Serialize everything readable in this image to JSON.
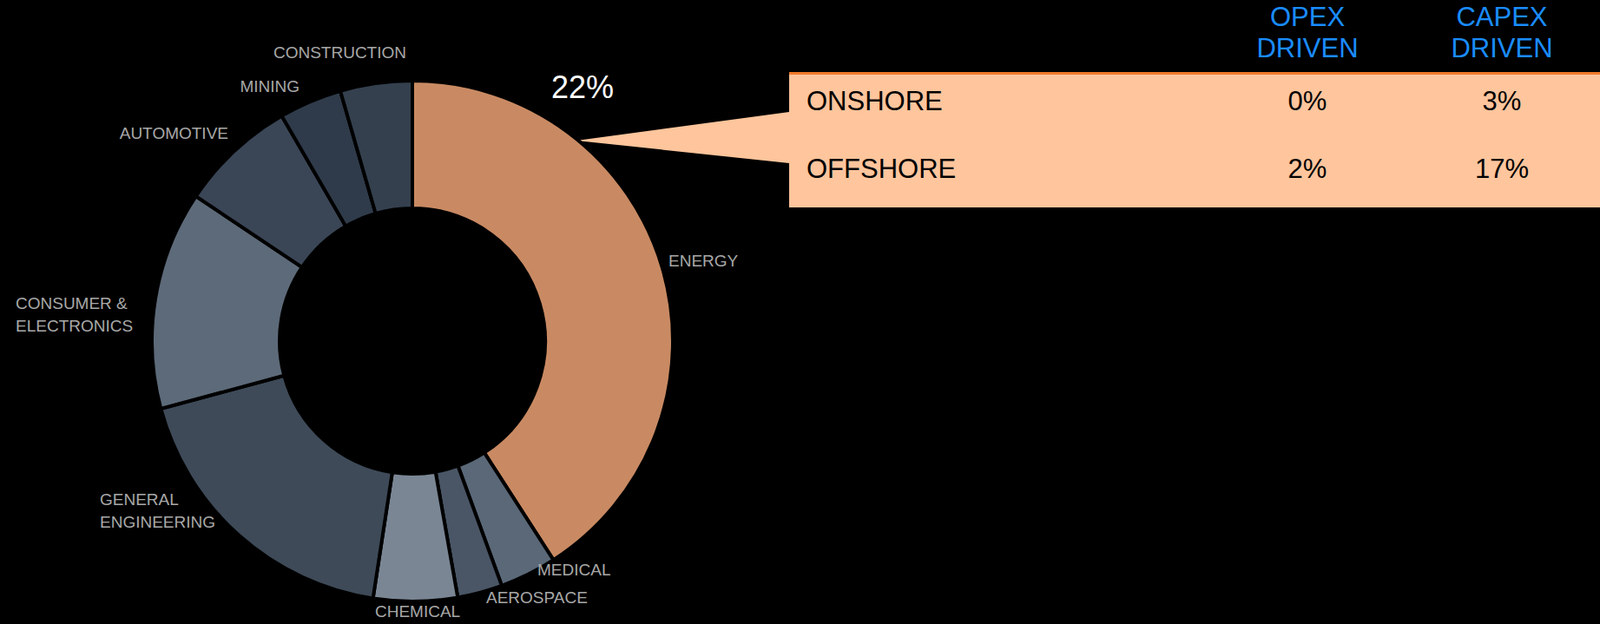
{
  "chart_data": {
    "type": "donut",
    "categories": [
      "ENERGY",
      "MEDICAL",
      "AEROSPACE",
      "CHEMICAL",
      "GENERAL ENGINEERING",
      "CONSUMER & ELECTRONICS",
      "AUTOMOTIVE",
      "MINING",
      "CONSTRUCTION"
    ],
    "values": [
      22,
      1.9,
      1.5,
      2.8,
      9.9,
      7.3,
      3.9,
      2.1,
      2.4
    ],
    "value_labels": [
      "22%",
      null,
      null,
      null,
      null,
      null,
      null,
      null,
      null
    ],
    "data_labels": true,
    "colors": [
      "#c98a63",
      "#5a6878",
      "#4a5666",
      "#7a8694",
      "#3e4a58",
      "#5d6a79",
      "#3a4656",
      "#2f3b4a",
      "#34404e"
    ]
  },
  "table": {
    "columns": [
      "OPEX DRIVEN",
      "CAPEX DRIVEN"
    ],
    "rows": [
      [
        "ONSHORE",
        "0%",
        "3%"
      ],
      [
        "OFFSHORE",
        "2%",
        "17%"
      ]
    ]
  }
}
